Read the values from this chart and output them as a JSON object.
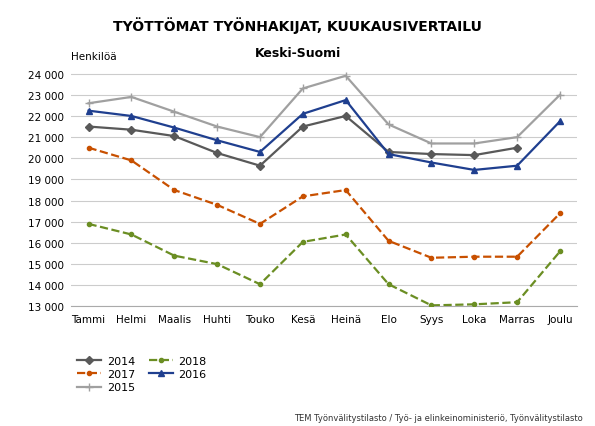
{
  "title": "TYÖTTÖMAT TYÖNHAKIJAT, KUUKAUSIVERTAILU",
  "subtitle": "Keski-Suomi",
  "ylabel": "Henkilöä",
  "footnote": "TEM Työnvälitystilasto / Työ- ja elinkeinoministeriö, Työnvälitystilasto",
  "months": [
    "Tammi",
    "Helmi",
    "Maalis",
    "Huhti",
    "Touko",
    "Kesä",
    "Heinä",
    "Elo",
    "Syys",
    "Loka",
    "Marras",
    "Joulu"
  ],
  "series": {
    "2014": {
      "values": [
        21500,
        21350,
        21050,
        20250,
        19650,
        21500,
        22000,
        20300,
        20200,
        20150,
        20500,
        null
      ],
      "color": "#595959",
      "linestyle": "-",
      "marker": "D",
      "linewidth": 1.6,
      "markersize": 4
    },
    "2015": {
      "values": [
        22600,
        22900,
        22200,
        21500,
        21000,
        23300,
        23900,
        21600,
        20700,
        20700,
        21000,
        23000
      ],
      "color": "#a0a0a0",
      "linestyle": "-",
      "marker": "+",
      "linewidth": 1.6,
      "markersize": 6
    },
    "2016": {
      "values": [
        22250,
        22000,
        21450,
        20850,
        20300,
        22100,
        22750,
        20200,
        19800,
        19450,
        19650,
        21750
      ],
      "color": "#1f3f8f",
      "linestyle": "-",
      "marker": "^",
      "linewidth": 1.6,
      "markersize": 4
    },
    "2017": {
      "values": [
        20500,
        19900,
        18500,
        17800,
        16900,
        18200,
        18500,
        16100,
        15300,
        15350,
        15350,
        17400
      ],
      "color": "#c85000",
      "linestyle": "--",
      "marker": "o",
      "linewidth": 1.6,
      "markersize": 3
    },
    "2018": {
      "values": [
        16900,
        16400,
        15400,
        15000,
        14050,
        16050,
        16400,
        14050,
        13050,
        13100,
        13200,
        15600
      ],
      "color": "#6b8e23",
      "linestyle": "--",
      "marker": "o",
      "linewidth": 1.6,
      "markersize": 3
    }
  },
  "ylim": [
    13000,
    24500
  ],
  "yticks": [
    13000,
    14000,
    15000,
    16000,
    17000,
    18000,
    19000,
    20000,
    21000,
    22000,
    23000,
    24000
  ],
  "background_color": "#ffffff",
  "grid_color": "#cccccc",
  "legend_order": [
    "2014",
    "2017",
    "2015",
    "2018",
    "2016"
  ]
}
